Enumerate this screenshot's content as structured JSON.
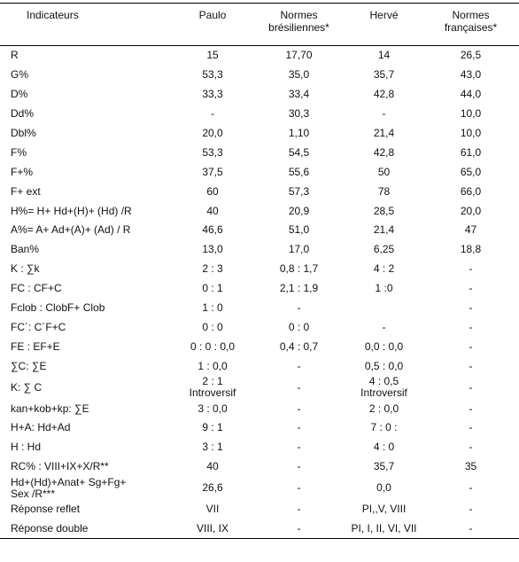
{
  "table": {
    "header": [
      "Indicateurs",
      "Paulo",
      "Normes\nbrésiliennes*",
      "Hervé",
      "Normes\nfrançaises*"
    ],
    "rows": [
      [
        "R",
        "15",
        "17,70",
        "14",
        "26,5"
      ],
      [
        "G%",
        "53,3",
        "35,0",
        "35,7",
        "43,0"
      ],
      [
        "D%",
        "33,3",
        "33,4",
        "42,8",
        "44,0"
      ],
      [
        "Dd%",
        "-",
        "30,3",
        "-",
        "10,0"
      ],
      [
        "Dbl%",
        "20,0",
        "1,10",
        "21,4",
        "10,0"
      ],
      [
        "F%",
        "53,3",
        "54,5",
        "42,8",
        "61,0"
      ],
      [
        "F+%",
        "37,5",
        "55,6",
        "50",
        "65,0"
      ],
      [
        "F+ ext",
        "60",
        "57,3",
        "78",
        "66,0"
      ],
      [
        "H%= H+ Hd+(H)+ (Hd) /R",
        "40",
        "20,9",
        "28,5",
        "20,0"
      ],
      [
        "A%= A+ Ad+(A)+ (Ad) / R",
        "46,6",
        "51,0",
        "21,4",
        "47"
      ],
      [
        "Ban%",
        "13,0",
        "17,0",
        "6,25",
        "18,8"
      ],
      [
        "K : ∑k",
        "2 : 3",
        "0,8 : 1,7",
        "4 : 2",
        "-"
      ],
      [
        "FC  : CF+C",
        "0 : 1",
        "2,1 : 1,9",
        "1 :0",
        "-"
      ],
      [
        "Fclob : ClobF+ Clob",
        "1 : 0",
        "-",
        null,
        "-"
      ],
      [
        "FC´: C´F+C",
        "0 : 0",
        "0 : 0",
        "-",
        "-"
      ],
      [
        "FE : EF+E",
        "0 : 0 : 0,0",
        "0,4 : 0,7",
        "0,0 : 0,0",
        "-"
      ],
      [
        "∑C: ∑E",
        "1 : 0,0",
        "-",
        "0,5 : 0,0",
        "-"
      ],
      [
        "K: ∑ C",
        "2 : 1\nIntroversif",
        "-",
        "4 : 0,5\nIntroversif",
        "-"
      ],
      [
        "kan+kob+kp: ∑E",
        "3 : 0,0",
        "-",
        "2 : 0,0",
        "-"
      ],
      [
        "H+A: Hd+Ad",
        "9 : 1",
        "-",
        "7 : 0 :",
        "-"
      ],
      [
        "H : Hd",
        "3 : 1",
        "-",
        "4 : 0",
        "-"
      ],
      [
        "RC% :  VIII+IX+X/R**",
        "40",
        "-",
        "35,7",
        "35"
      ],
      [
        "Hd+(Hd)+Anat+ Sg+Fg+\nSex /R***",
        "26,6",
        "-",
        "0,0",
        "-"
      ],
      [
        "Réponse reflet",
        "VII",
        "-",
        "PI,,V, VIII",
        "-"
      ],
      [
        "Réponse double",
        "VIII, IX",
        "-",
        "PI, I, II, VI, VII",
        "-"
      ]
    ]
  }
}
